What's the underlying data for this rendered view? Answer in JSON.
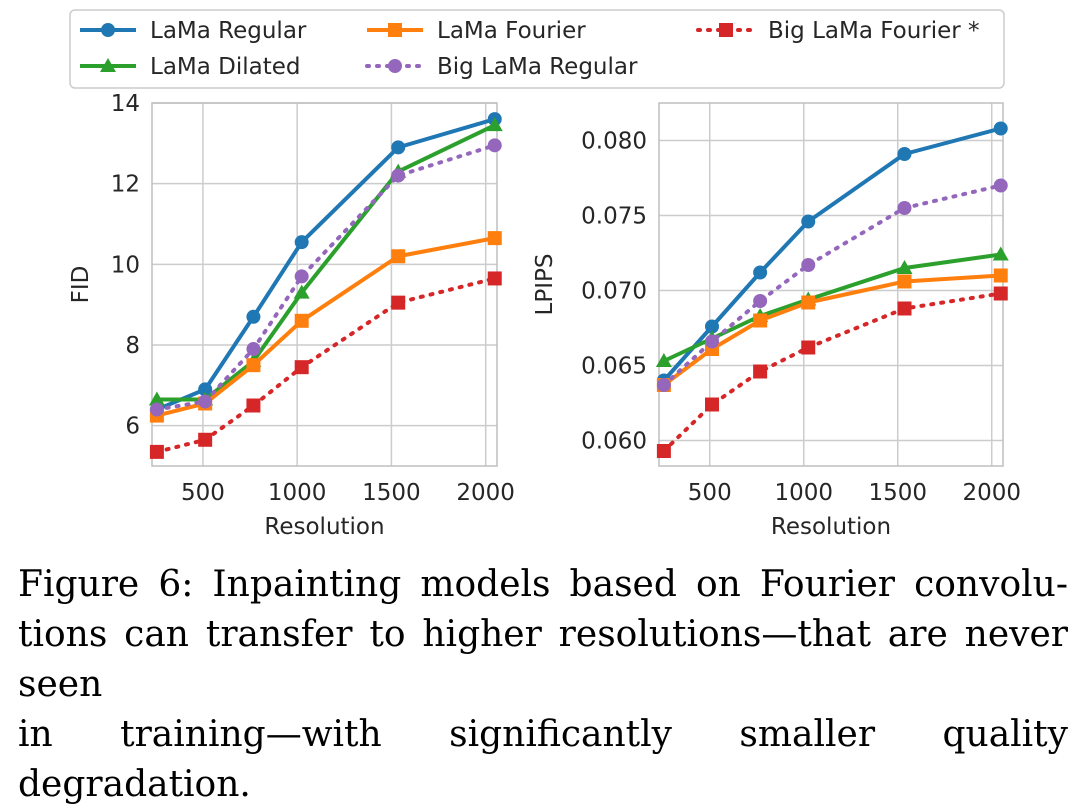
{
  "series_styles": {
    "LaMa Regular": {
      "color": "#1f77b4",
      "marker": "circle",
      "dash": "solid"
    },
    "LaMa Dilated": {
      "color": "#2ca02c",
      "marker": "triangle",
      "dash": "solid"
    },
    "LaMa Fourier": {
      "color": "#ff7f0e",
      "marker": "square",
      "dash": "solid"
    },
    "Big LaMa Regular": {
      "color": "#9467bd",
      "marker": "circle",
      "dash": "dotted"
    },
    "Big LaMa Fourier *": {
      "color": "#d62728",
      "marker": "square",
      "dash": "dotted"
    }
  },
  "legend": [
    "LaMa Regular",
    "LaMa Fourier",
    "Big LaMa Fourier *",
    "LaMa Dilated",
    "Big LaMa Regular"
  ],
  "chart_data": [
    {
      "type": "line",
      "title": "",
      "xlabel": "Resolution",
      "ylabel": "FID",
      "xlim": [
        230,
        2060
      ],
      "ylim": [
        5.0,
        14.0
      ],
      "xticks": [
        500,
        1000,
        1500,
        2000
      ],
      "yticks": [
        6,
        8,
        10,
        12,
        14
      ],
      "ytick_labels": [
        "6",
        "8",
        "10",
        "12",
        "14"
      ],
      "x": [
        256,
        512,
        768,
        1024,
        1536,
        2048
      ],
      "series": [
        {
          "name": "LaMa Regular",
          "values": [
            6.4,
            6.9,
            8.7,
            10.55,
            12.9,
            13.6
          ]
        },
        {
          "name": "LaMa Dilated",
          "values": [
            6.65,
            6.65,
            7.6,
            9.3,
            12.3,
            13.45
          ]
        },
        {
          "name": "LaMa Fourier",
          "values": [
            6.25,
            6.55,
            7.5,
            8.6,
            10.2,
            10.65
          ]
        },
        {
          "name": "Big LaMa Regular",
          "values": [
            6.4,
            6.6,
            7.9,
            9.7,
            12.2,
            12.95
          ]
        },
        {
          "name": "Big LaMa Fourier *",
          "values": [
            5.35,
            5.65,
            6.5,
            7.45,
            9.05,
            9.65
          ]
        }
      ]
    },
    {
      "type": "line",
      "title": "",
      "xlabel": "Resolution",
      "ylabel": "LPIPS",
      "xlim": [
        230,
        2060
      ],
      "ylim": [
        0.0583,
        0.0825
      ],
      "xticks": [
        500,
        1000,
        1500,
        2000
      ],
      "yticks": [
        0.06,
        0.065,
        0.07,
        0.075,
        0.08
      ],
      "ytick_labels": [
        "0.060",
        "0.065",
        "0.070",
        "0.075",
        "0.080"
      ],
      "x": [
        256,
        512,
        768,
        1024,
        1536,
        2048
      ],
      "series": [
        {
          "name": "LaMa Regular",
          "values": [
            0.064,
            0.0676,
            0.0712,
            0.0746,
            0.0791,
            0.0808
          ]
        },
        {
          "name": "LaMa Dilated",
          "values": [
            0.0653,
            0.0668,
            0.0683,
            0.0694,
            0.0715,
            0.0724
          ]
        },
        {
          "name": "LaMa Fourier",
          "values": [
            0.0637,
            0.0661,
            0.068,
            0.0692,
            0.0706,
            0.071
          ]
        },
        {
          "name": "Big LaMa Regular",
          "values": [
            0.0637,
            0.0666,
            0.0693,
            0.0717,
            0.0755,
            0.077
          ]
        },
        {
          "name": "Big LaMa Fourier *",
          "values": [
            0.0593,
            0.0624,
            0.0646,
            0.0662,
            0.0688,
            0.0698
          ]
        }
      ]
    }
  ],
  "caption": {
    "line1": "Figure 6:  Inpainting models based on Fourier convolu-",
    "line2": "tions can transfer to higher resolutions—that are never seen",
    "line3": "in training—with significantly smaller quality degradation."
  }
}
